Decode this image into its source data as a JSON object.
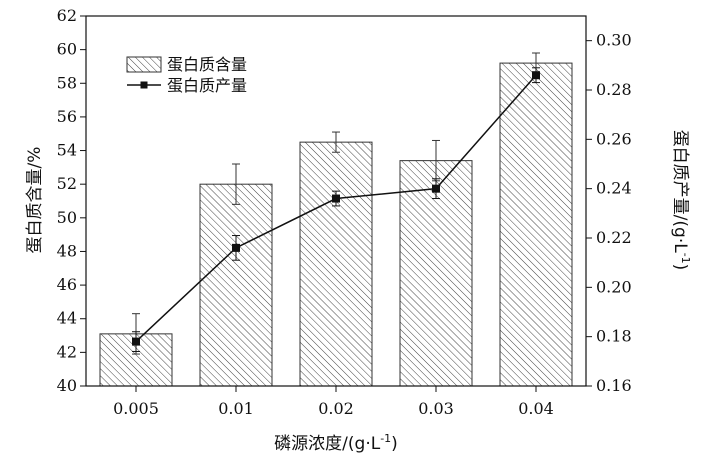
{
  "chart_data": {
    "type": "bar+line",
    "categories": [
      "0.005",
      "0.01",
      "0.02",
      "0.03",
      "0.04"
    ],
    "bar_series": {
      "name": "蛋白质含量",
      "values": [
        43.1,
        52.0,
        54.5,
        53.4,
        59.2
      ],
      "errors": [
        1.2,
        1.2,
        0.6,
        1.2,
        0.6
      ]
    },
    "line_series": {
      "name": "蛋白质产量",
      "values": [
        0.178,
        0.216,
        0.236,
        0.24,
        0.286
      ],
      "errors": [
        0.004,
        0.005,
        0.003,
        0.004,
        0.003
      ]
    },
    "xlabel": "磷源浓度/(g·L",
    "xlabel_sup": "-1",
    "xlabel_tail": ")",
    "ylabel_left": "蛋白质含量/%",
    "ylabel_right": "蛋白质产量/(g·L",
    "ylabel_right_sup": "-1",
    "ylabel_right_tail": ")",
    "ylim_left": [
      40,
      62
    ],
    "yticks_left": [
      "40",
      "42",
      "44",
      "46",
      "48",
      "50",
      "52",
      "54",
      "56",
      "58",
      "60",
      "62"
    ],
    "ylim_right": [
      0.16,
      0.31
    ],
    "yticks_right": [
      "0.16",
      "0.18",
      "0.20",
      "0.22",
      "0.24",
      "0.26",
      "0.28",
      "0.30"
    ],
    "legend_position": "top-left",
    "grid": false,
    "colors": {
      "bar_stroke": "#333333",
      "line": "#111111"
    }
  }
}
